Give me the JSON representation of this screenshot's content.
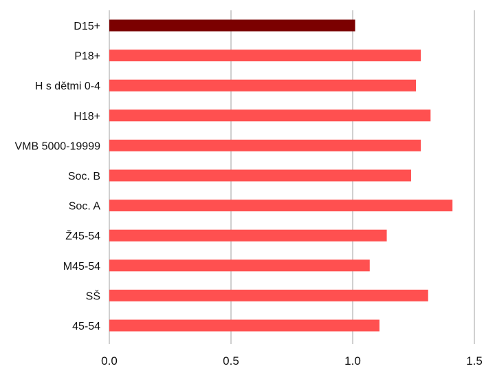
{
  "chart_data": {
    "type": "bar",
    "orientation": "horizontal",
    "title": "",
    "xlabel": "",
    "ylabel": "",
    "categories": [
      "D15+",
      "P18+",
      "H s dětmi 0-4",
      "H18+",
      "VMB 5000-19999",
      "Soc. B",
      "Soc. A",
      "Ž45-54",
      "M45-54",
      "SŠ",
      "45-54"
    ],
    "values": [
      1.01,
      1.28,
      1.26,
      1.32,
      1.28,
      1.24,
      1.41,
      1.14,
      1.07,
      1.31,
      1.11
    ],
    "xlim": [
      0.0,
      1.5
    ],
    "x_ticks": [
      "0.0",
      "0.5",
      "1.0",
      "1.5"
    ],
    "grid": "vertical",
    "legend": "none",
    "colors": {
      "highlight": "#7b0000",
      "bar": "#ff5050",
      "grid": "#a0a0a0",
      "text": "#111111"
    },
    "highlight_index": 0
  }
}
